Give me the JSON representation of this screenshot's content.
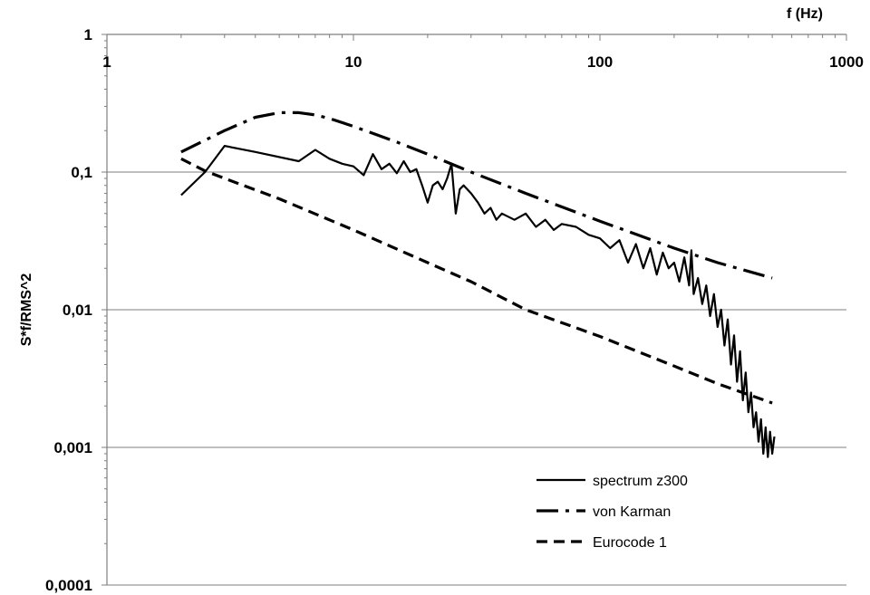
{
  "chart_data": {
    "type": "line",
    "title": "",
    "xlabel": "f (Hz)",
    "ylabel": "S*f/RMS^2",
    "x_scale": "log",
    "y_scale": "log",
    "xlim": [
      1,
      1000
    ],
    "ylim": [
      0.0001,
      1
    ],
    "x_ticks": [
      "1",
      "10",
      "100",
      "1000"
    ],
    "y_ticks": [
      "1",
      "0,1",
      "0,01",
      "0,001",
      "0,0001"
    ],
    "grid": "horizontal",
    "legend_position": "bottom-right",
    "series": [
      {
        "name": "spectrum z300",
        "style": "solid",
        "color": "#000000",
        "x": [
          2,
          2.5,
          3,
          4,
          6,
          7,
          8,
          9,
          10,
          11,
          12,
          13,
          14,
          15,
          16,
          17,
          18,
          19,
          20,
          21,
          22,
          23,
          24,
          25,
          26,
          27,
          28,
          30,
          32,
          34,
          36,
          38,
          40,
          45,
          50,
          55,
          60,
          65,
          70,
          80,
          90,
          100,
          110,
          120,
          130,
          140,
          150,
          160,
          170,
          180,
          190,
          200,
          210,
          220,
          230,
          235,
          240,
          250,
          260,
          270,
          280,
          290,
          300,
          310,
          320,
          330,
          340,
          350,
          360,
          370,
          380,
          390,
          400,
          410,
          420,
          430,
          440,
          450,
          460,
          470,
          480,
          490,
          500,
          510
        ],
        "y": [
          0.068,
          0.1,
          0.155,
          0.14,
          0.12,
          0.145,
          0.125,
          0.115,
          0.11,
          0.095,
          0.135,
          0.105,
          0.115,
          0.098,
          0.12,
          0.1,
          0.105,
          0.08,
          0.06,
          0.08,
          0.085,
          0.075,
          0.09,
          0.115,
          0.05,
          0.075,
          0.08,
          0.07,
          0.06,
          0.05,
          0.055,
          0.045,
          0.05,
          0.045,
          0.05,
          0.04,
          0.045,
          0.038,
          0.042,
          0.04,
          0.035,
          0.033,
          0.028,
          0.032,
          0.022,
          0.03,
          0.02,
          0.028,
          0.018,
          0.026,
          0.02,
          0.022,
          0.016,
          0.024,
          0.015,
          0.027,
          0.013,
          0.017,
          0.011,
          0.015,
          0.009,
          0.013,
          0.0075,
          0.01,
          0.0055,
          0.0085,
          0.004,
          0.0065,
          0.003,
          0.005,
          0.0022,
          0.0035,
          0.0018,
          0.0025,
          0.0014,
          0.0018,
          0.0011,
          0.0016,
          0.0009,
          0.0014,
          0.00085,
          0.0013,
          0.0009,
          0.0012
        ]
      },
      {
        "name": "von Karman",
        "style": "dash-dot",
        "color": "#000000",
        "x": [
          2,
          3,
          4,
          5,
          6,
          7,
          8,
          10,
          15,
          20,
          30,
          50,
          100,
          200,
          300,
          500
        ],
        "y": [
          0.14,
          0.2,
          0.25,
          0.27,
          0.27,
          0.26,
          0.245,
          0.215,
          0.165,
          0.135,
          0.1,
          0.07,
          0.044,
          0.028,
          0.022,
          0.017
        ]
      },
      {
        "name": "Eurocode 1",
        "style": "dashed",
        "color": "#000000",
        "x": [
          2,
          2.5,
          3,
          5,
          10,
          20,
          30,
          50,
          100,
          200,
          300,
          500
        ],
        "y": [
          0.125,
          0.102,
          0.09,
          0.064,
          0.038,
          0.022,
          0.016,
          0.01,
          0.0064,
          0.0039,
          0.0029,
          0.0021
        ]
      }
    ]
  }
}
